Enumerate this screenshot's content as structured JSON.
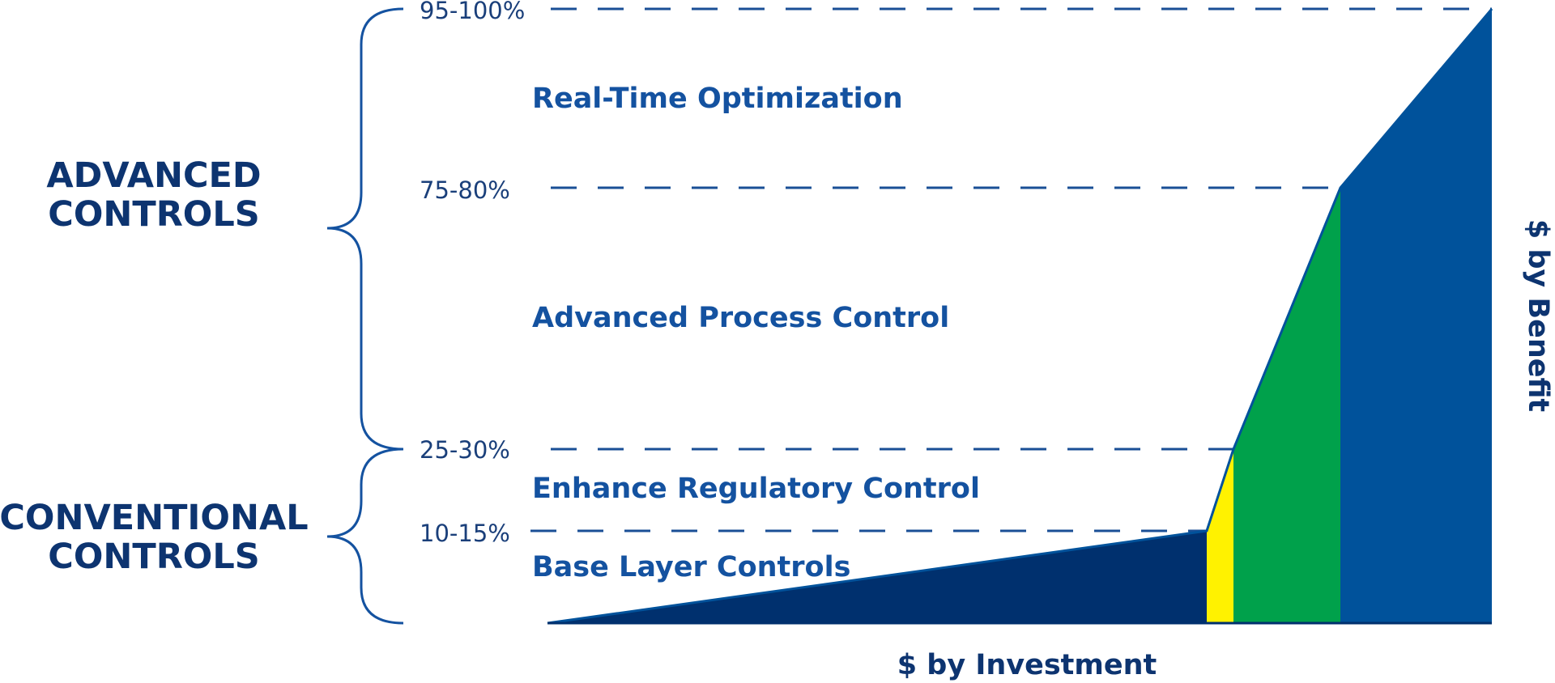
{
  "groups": {
    "advanced": [
      "ADVANCED",
      "CONTROLS"
    ],
    "conventional": [
      "CONVENTIONAL",
      "CONTROLS"
    ]
  },
  "thresholds": [
    "95-100%",
    "75-80%",
    "25-30%",
    "10-15%"
  ],
  "levels": [
    {
      "label": "Real-Time Optimization",
      "color": "#00529b"
    },
    {
      "label": "Advanced Process Control",
      "color": "#00a14b"
    },
    {
      "label": "Enhance Regulatory Control",
      "color": "#fff200"
    },
    {
      "label": "Base Layer Controls",
      "color": "#00306e"
    }
  ],
  "axes": {
    "x_label": "$ by Investment",
    "y_label": "$ by Benefit"
  },
  "colors": {
    "text_dark": "#0d3470",
    "text_blue": "#1452a0",
    "line": "#1a4f96"
  }
}
